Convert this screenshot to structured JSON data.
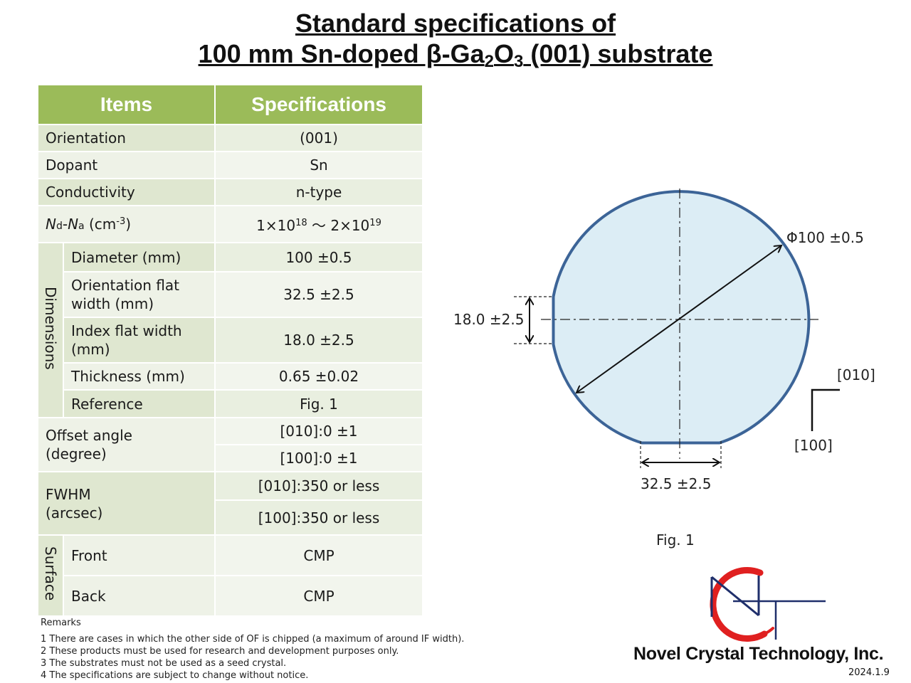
{
  "title": {
    "line1": "Standard specifications of",
    "line2_pre": "100 mm Sn-doped β-Ga",
    "line2_sub1": "2",
    "line2_mid": "O",
    "line2_sub2": "3",
    "line2_post": " (001) substrate"
  },
  "table": {
    "header_items": "Items",
    "header_specs": "Specifications",
    "orientation_label": "Orientation",
    "orientation_value": "(001)",
    "dopant_label": "Dopant",
    "dopant_value": "Sn",
    "conductivity_label": "Conductivity",
    "conductivity_value": "n-type",
    "nd_n1": "N",
    "nd_d": "d",
    "nd_dash": "-",
    "nd_n2": "N",
    "nd_a": "a",
    "nd_unit": " (cm",
    "nd_unit_exp": "-3",
    "nd_close": ")",
    "nd_v1": "1×10",
    "nd_v1_exp": "18",
    "nd_sep": " ～ 2×10",
    "nd_v2_exp": "19",
    "dimensions_group": "Dimensions",
    "diameter_label": "Diameter (mm)",
    "diameter_value": "100 ±0.5",
    "of_label_1": "Orientation flat",
    "of_label_2": "width (mm)",
    "of_value": "32.5 ±2.5",
    "if_label_1": "Index flat width",
    "if_label_2": "(mm)",
    "if_value": "18.0 ±2.5",
    "thickness_label": "Thickness (mm)",
    "thickness_value": "0.65 ±0.02",
    "reference_label": "Reference",
    "reference_value": "Fig. 1",
    "offset_label_1": "Offset angle",
    "offset_label_2": "(degree)",
    "offset_value_1": "[010]:0 ±1",
    "offset_value_2": "[100]:0 ±1",
    "fwhm_label_1": "FWHM",
    "fwhm_label_2": "(arcsec)",
    "fwhm_value_1": "[010]:350 or less",
    "fwhm_value_2": "[100]:350 or less",
    "surface_group": "Surface",
    "front_label": "Front",
    "front_value": "CMP",
    "back_label": "Back",
    "back_value": "CMP"
  },
  "remarks": {
    "heading": "Remarks",
    "items": [
      "1 There are cases in which the other side of OF is chipped (a maximum of around IF width).",
      "2 These products must be used for research and development purposes only.",
      "3 The substrates must not be used as a seed crystal.",
      "4 The specifications are subject to change without notice."
    ]
  },
  "figure": {
    "diameter_label": "Φ100 ±0.5",
    "index_flat_label": "18.0 ±2.5",
    "orientation_flat_label": "32.5 ±2.5",
    "axis_010": "[010]",
    "axis_100": "[100]",
    "caption": "Fig. 1",
    "wafer_fill": "#dcedf5",
    "wafer_stroke": "#3c6497"
  },
  "logo": {
    "company": "Novel Crystal Technology, Inc.",
    "date": "2024.1.9",
    "accent": "#e02020",
    "navy": "#1f2f6b"
  }
}
